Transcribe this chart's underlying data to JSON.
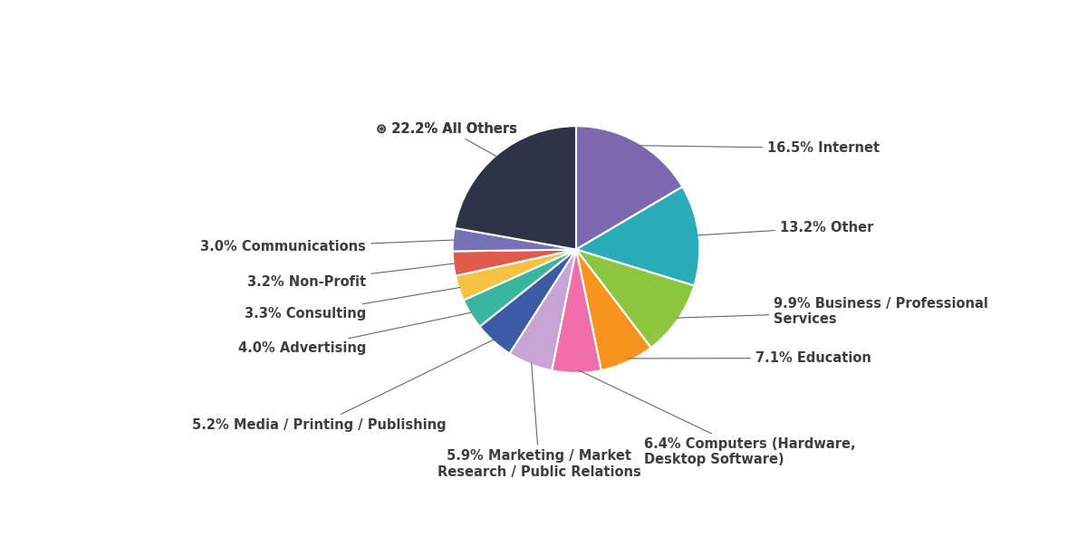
{
  "slices": [
    {
      "label": "16.5% Internet",
      "value": 16.5,
      "color": "#7B68AE"
    },
    {
      "label": "13.2% Other",
      "value": 13.2,
      "color": "#2AABB8"
    },
    {
      "label": "9.9% Business / Professional\nServices",
      "value": 9.9,
      "color": "#8DC63F"
    },
    {
      "label": "7.1% Education",
      "value": 7.1,
      "color": "#F7941D"
    },
    {
      "label": "6.4% Computers (Hardware,\nDesktop Software)",
      "value": 6.4,
      "color": "#F06EAA"
    },
    {
      "label": "5.9% Marketing / Market\nResearch / Public Relations",
      "value": 5.9,
      "color": "#C8A4D4"
    },
    {
      "label": "5.2% Media / Printing / Publishing",
      "value": 5.2,
      "color": "#3B5BA5"
    },
    {
      "label": "4.0% Advertising",
      "value": 4.0,
      "color": "#39B5A0"
    },
    {
      "label": "3.3% Consulting",
      "value": 3.3,
      "color": "#F5C242"
    },
    {
      "label": "3.2% Non-Profit",
      "value": 3.2,
      "color": "#E05B4B"
    },
    {
      "label": "3.0% Communications",
      "value": 3.0,
      "color": "#7472B4"
    },
    {
      "label": "22.2% All Others",
      "value": 22.2,
      "color": "#2E3347"
    }
  ],
  "background_color": "#FFFFFF",
  "label_color": "#3d3d3d",
  "label_fontsize": 10.5,
  "all_others_label": "⊛ 22.2% All Others"
}
